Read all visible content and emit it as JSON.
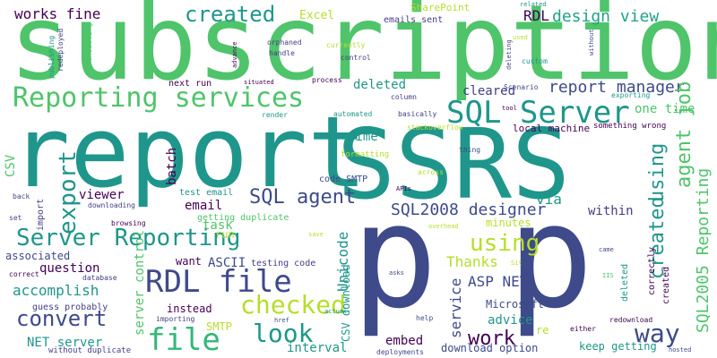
{
  "word_cloud": {
    "words": [
      {
        "text": "subscription",
        "color": "#4fc46a"
      },
      {
        "text": "report",
        "color": "#1f968b"
      },
      {
        "text": "SSRS",
        "color": "#1f968b"
      },
      {
        "text": "p",
        "color": "#3e4a89"
      },
      {
        "text": "p",
        "color": "#3e4a89"
      },
      {
        "text": "Reporting services",
        "color": "#4fc46a"
      },
      {
        "text": "SQL Server",
        "color": "#1f968b"
      },
      {
        "text": "created",
        "color": "#1f968b"
      },
      {
        "text": "works fine",
        "color": "#440154"
      },
      {
        "text": "Excel",
        "color": "#b5de2b"
      },
      {
        "text": "SharePoint",
        "color": "#b5de2b"
      },
      {
        "text": "emails sent",
        "color": "#433e85"
      },
      {
        "text": "RDL",
        "color": "#440154"
      },
      {
        "text": "design view",
        "color": "#20a386"
      },
      {
        "text": "report manager",
        "color": "#3e4a89"
      },
      {
        "text": "one time",
        "color": "#4fc46a"
      },
      {
        "text": "SQL agent",
        "color": "#3e4a89"
      },
      {
        "text": "Server Reporting",
        "color": "#1f968b"
      },
      {
        "text": "RDL file",
        "color": "#3e4a89"
      },
      {
        "text": "convert",
        "color": "#3e4a89"
      },
      {
        "text": "checked",
        "color": "#b5de2b"
      },
      {
        "text": "file",
        "color": "#35b779"
      },
      {
        "text": "look",
        "color": "#1f968b"
      },
      {
        "text": "way",
        "color": "#3e4a89"
      },
      {
        "text": "work",
        "color": "#440154"
      },
      {
        "text": "using",
        "color": "#b5de2b"
      },
      {
        "text": "agent job",
        "color": "#4fc46a"
      },
      {
        "text": "SQL2005 Reporting",
        "color": "#4fc46a"
      },
      {
        "text": "SQL2008 designer",
        "color": "#3e4a89"
      },
      {
        "text": "export",
        "color": "#1f968b"
      },
      {
        "text": "next run",
        "color": "#440154"
      },
      {
        "text": "deleted",
        "color": "#1f968b"
      },
      {
        "text": "cleared",
        "color": "#433e85"
      },
      {
        "text": "using",
        "color": "#1f968b"
      },
      {
        "text": "created",
        "color": "#1f968b"
      },
      {
        "text": "via",
        "color": "#1f968b"
      },
      {
        "text": "time",
        "color": "#1f968b"
      },
      {
        "text": "CSV",
        "color": "#4fc46a"
      },
      {
        "text": "batch",
        "color": "#440154"
      },
      {
        "text": "viewer",
        "color": "#440154"
      },
      {
        "text": "email",
        "color": "#440154"
      },
      {
        "text": "task",
        "color": "#4fc46a"
      },
      {
        "text": "test email",
        "color": "#1f968b"
      },
      {
        "text": "getting duplicate",
        "color": "#4fc46a"
      },
      {
        "text": "within",
        "color": "#433e85"
      },
      {
        "text": "minutes",
        "color": "#b5de2b"
      },
      {
        "text": "question",
        "color": "#440154"
      },
      {
        "text": "accomplish",
        "color": "#1f968b"
      },
      {
        "text": "associated",
        "color": "#3e4a89"
      },
      {
        "text": "server control",
        "color": "#4fc46a"
      },
      {
        "text": "run",
        "color": "#b5de2b"
      },
      {
        "text": "want",
        "color": "#440154"
      },
      {
        "text": "ASCII",
        "color": "#3e4a89"
      },
      {
        "text": "testing code",
        "color": "#433e85"
      },
      {
        "text": "Unicode",
        "color": "#1f968b"
      },
      {
        "text": "Thanks",
        "color": "#b5de2b"
      },
      {
        "text": "ASP NET",
        "color": "#3e4a89"
      },
      {
        "text": "service",
        "color": "#3e4a89"
      },
      {
        "text": "instead",
        "color": "#440154"
      },
      {
        "text": "SMTP",
        "color": "#b5de2b"
      },
      {
        "text": "Microsoft",
        "color": "#3e4a89"
      },
      {
        "text": "advice",
        "color": "#1f968b"
      },
      {
        "text": "re",
        "color": "#b5de2b"
      },
      {
        "text": "NET server",
        "color": "#1f968b"
      },
      {
        "text": "interval",
        "color": "#1f968b"
      },
      {
        "text": "embed",
        "color": "#440154"
      },
      {
        "text": "download option",
        "color": "#3e4a89"
      },
      {
        "text": "keep getting",
        "color": "#1f968b"
      },
      {
        "text": "CSV download",
        "color": "#1f968b"
      },
      {
        "text": "guess probably",
        "color": "#433e85"
      },
      {
        "text": "local machine",
        "color": "#440154"
      },
      {
        "text": "code SMTP",
        "color": "#3e4a89"
      },
      {
        "text": "import",
        "color": "#433e85"
      },
      {
        "text": "formatting",
        "color": "#b5de2b"
      },
      {
        "text": "stackoverflow",
        "color": "#b5de2b"
      },
      {
        "text": "across",
        "color": "#b5de2b"
      },
      {
        "text": "APIs",
        "color": "#440154"
      },
      {
        "text": "something wrong",
        "color": "#440154"
      },
      {
        "text": "exporting",
        "color": "#1f968b"
      },
      {
        "text": "basically",
        "color": "#433e85"
      },
      {
        "text": "automated",
        "color": "#1f968b"
      },
      {
        "text": "render",
        "color": "#1f968b"
      },
      {
        "text": "process",
        "color": "#440154"
      },
      {
        "text": "control",
        "color": "#433e85"
      },
      {
        "text": "column",
        "color": "#433e85"
      },
      {
        "text": "tool",
        "color": "#440154"
      },
      {
        "text": "Scenario",
        "color": "#3e4a89"
      },
      {
        "text": "thing",
        "color": "#3e4a89"
      },
      {
        "text": "custom",
        "color": "#1f968b"
      },
      {
        "text": "related",
        "color": "#1f968b"
      },
      {
        "text": "used",
        "color": "#b5de2b"
      },
      {
        "text": "currently",
        "color": "#b5de2b"
      },
      {
        "text": "orphaned",
        "color": "#433e85"
      },
      {
        "text": "handle",
        "color": "#433e85"
      },
      {
        "text": "situated",
        "color": "#440154"
      },
      {
        "text": "advance",
        "color": "#440154"
      },
      {
        "text": "deleting",
        "color": "#433e85"
      },
      {
        "text": "without",
        "color": "#3e4a89"
      },
      {
        "text": "redeployed",
        "color": "#433e85"
      },
      {
        "text": "scheduling",
        "color": "#4fc46a"
      },
      {
        "text": "publishing",
        "color": "#1f968b"
      },
      {
        "text": "back",
        "color": "#3e4a89"
      },
      {
        "text": "downloading",
        "color": "#433e85"
      },
      {
        "text": "browsing",
        "color": "#440154"
      },
      {
        "text": "set",
        "color": "#3e4a89"
      },
      {
        "text": "save",
        "color": "#b5de2b"
      },
      {
        "text": "overhead",
        "color": "#b5de2b"
      },
      {
        "text": "came",
        "color": "#3e4a89"
      },
      {
        "text": "Sit",
        "color": "#b5de2b"
      },
      {
        "text": "asks",
        "color": "#3e4a89"
      },
      {
        "text": "IIS",
        "color": "#4fc46a"
      },
      {
        "text": "correct",
        "color": "#440154"
      },
      {
        "text": "database",
        "color": "#433e85"
      },
      {
        "text": "importing",
        "color": "#433e85"
      },
      {
        "text": "href",
        "color": "#3e4a89"
      },
      {
        "text": "actual",
        "color": "#1f968b"
      },
      {
        "text": "help",
        "color": "#3e4a89"
      },
      {
        "text": "redownload",
        "color": "#440154"
      },
      {
        "text": "either",
        "color": "#440154"
      },
      {
        "text": "without duplicate",
        "color": "#433e85"
      },
      {
        "text": "deployments",
        "color": "#3e4a89"
      },
      {
        "text": "hosted",
        "color": "#3e4a89"
      },
      {
        "text": "correctly",
        "color": "#440154"
      },
      {
        "text": "created",
        "color": "#440154"
      },
      {
        "text": "deleted",
        "color": "#1f968b"
      }
    ]
  }
}
